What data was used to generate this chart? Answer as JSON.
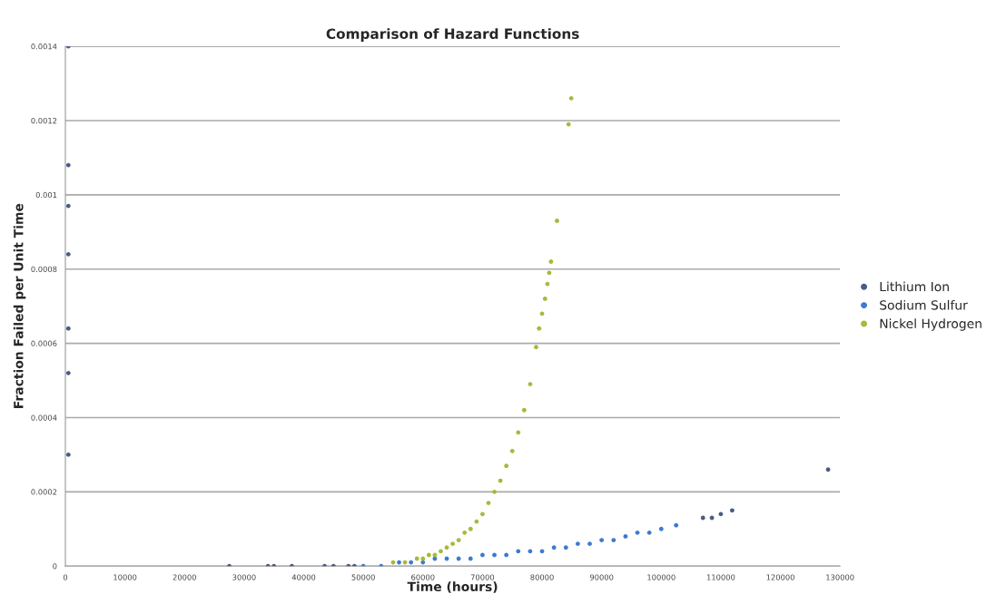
{
  "chart_data": {
    "type": "scatter",
    "title": "Comparison of Hazard Functions",
    "xlabel": "Time (hours)",
    "ylabel": "Fraction Failed per Unit Time",
    "xlim": [
      0,
      130000
    ],
    "xticks": [
      0,
      10000,
      20000,
      30000,
      40000,
      50000,
      60000,
      70000,
      80000,
      90000,
      100000,
      110000,
      120000,
      130000
    ],
    "ylim": [
      0,
      0.0014
    ],
    "yticks": [
      0,
      0.0002,
      0.0004,
      0.0006,
      0.0008,
      0.001,
      0.0012,
      0.0014
    ],
    "grid": "y",
    "legend": "right",
    "marker": "circle",
    "series": [
      {
        "name": "Lithium Ion",
        "color": "#4b5b86",
        "x": [
          500,
          500,
          500,
          500,
          500,
          500,
          500,
          27500,
          34000,
          35000,
          38000,
          43500,
          45000,
          47500,
          48500,
          107000,
          108500,
          110000,
          111900,
          128000
        ],
        "values": [
          0.0014,
          0.00108,
          0.00097,
          0.00084,
          0.00064,
          0.00052,
          0.0003,
          0,
          0,
          0,
          0,
          0,
          0,
          0,
          0,
          0.00013,
          0.00013,
          0.00014,
          0.00015,
          0.00026
        ]
      },
      {
        "name": "Sodium Sulfur",
        "color": "#3c7bd0",
        "x": [
          50000,
          53000,
          56000,
          58000,
          60000,
          62000,
          64000,
          66000,
          68000,
          70000,
          72000,
          74000,
          76000,
          78000,
          80000,
          82000,
          84000,
          86000,
          88000,
          90000,
          92000,
          94000,
          96000,
          98000,
          100000,
          102500
        ],
        "values": [
          0,
          0,
          1e-05,
          1e-05,
          1e-05,
          2e-05,
          2e-05,
          2e-05,
          2e-05,
          3e-05,
          3e-05,
          3e-05,
          4e-05,
          4e-05,
          4e-05,
          5e-05,
          5e-05,
          6e-05,
          6e-05,
          7e-05,
          7e-05,
          8e-05,
          9e-05,
          9e-05,
          0.0001,
          0.00011
        ]
      },
      {
        "name": "Nickel Hydrogen",
        "color": "#a9b83a",
        "x": [
          55000,
          57000,
          59000,
          60000,
          61000,
          62000,
          63000,
          64000,
          65000,
          66000,
          67000,
          68000,
          69000,
          70000,
          71000,
          72000,
          73000,
          74000,
          75000,
          76000,
          77000,
          78000,
          79000,
          79500,
          80000,
          80500,
          80900,
          81200,
          81500,
          82500,
          84450,
          84900
        ],
        "values": [
          1e-05,
          1e-05,
          2e-05,
          2e-05,
          3e-05,
          3e-05,
          4e-05,
          5e-05,
          6e-05,
          7e-05,
          9e-05,
          0.0001,
          0.00012,
          0.00014,
          0.00017,
          0.0002,
          0.00023,
          0.00027,
          0.00031,
          0.00036,
          0.00042,
          0.00049,
          0.00059,
          0.00064,
          0.00068,
          0.00072,
          0.00076,
          0.00079,
          0.00082,
          0.00093,
          0.00119,
          0.00126
        ]
      }
    ]
  }
}
